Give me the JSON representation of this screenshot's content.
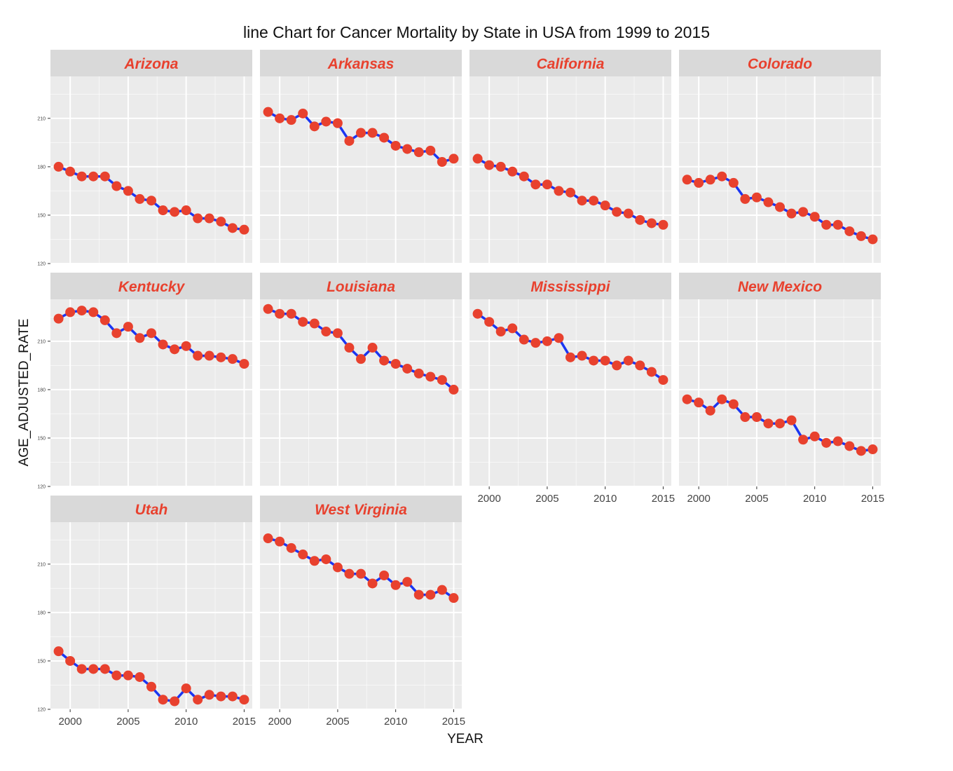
{
  "chart_data": {
    "type": "line",
    "title": "line Chart for Cancer Mortality by State in USA from 1999 to 2015",
    "xlabel": "YEAR",
    "ylabel": "AGE_ADJUSTED_RATE",
    "xlim": [
      1998.3,
      2015.7
    ],
    "ylim": [
      120,
      236
    ],
    "x_ticks": [
      2000,
      2005,
      2010,
      2015
    ],
    "y_ticks": [
      120,
      150,
      180,
      210
    ],
    "grid": true,
    "legend": "none",
    "facets": "wrap-4-columns",
    "colors": {
      "panel_bg": "#ebebeb",
      "strip_bg": "#d9d9d9",
      "grid": "#ffffff",
      "line": "#1a35f2",
      "point": "#e8412e",
      "strip_text": "#e8412e"
    },
    "x": [
      1999,
      2000,
      2001,
      2002,
      2003,
      2004,
      2005,
      2006,
      2007,
      2008,
      2009,
      2010,
      2011,
      2012,
      2013,
      2014,
      2015
    ],
    "series": [
      {
        "name": "Arizona",
        "values": [
          180,
          177,
          174,
          174,
          174,
          168,
          165,
          160,
          159,
          153,
          152,
          153,
          148,
          148,
          146,
          142,
          141
        ]
      },
      {
        "name": "Arkansas",
        "values": [
          214,
          210,
          209,
          213,
          205,
          208,
          207,
          196,
          201,
          201,
          198,
          193,
          191,
          189,
          190,
          183,
          185
        ]
      },
      {
        "name": "California",
        "values": [
          185,
          181,
          180,
          177,
          174,
          169,
          169,
          165,
          164,
          159,
          159,
          156,
          152,
          151,
          147,
          145,
          144
        ]
      },
      {
        "name": "Colorado",
        "values": [
          172,
          170,
          172,
          174,
          170,
          160,
          161,
          158,
          155,
          151,
          152,
          149,
          144,
          144,
          140,
          137,
          135
        ]
      },
      {
        "name": "Kentucky",
        "values": [
          224,
          228,
          229,
          228,
          223,
          215,
          219,
          212,
          215,
          208,
          205,
          207,
          201,
          201,
          200,
          199,
          196
        ]
      },
      {
        "name": "Louisiana",
        "values": [
          230,
          227,
          227,
          222,
          221,
          216,
          215,
          206,
          199,
          206,
          198,
          196,
          193,
          190,
          188,
          186,
          180
        ]
      },
      {
        "name": "Mississippi",
        "values": [
          227,
          222,
          216,
          218,
          211,
          209,
          210,
          212,
          200,
          201,
          198,
          198,
          195,
          198,
          195,
          191,
          186
        ]
      },
      {
        "name": "New Mexico",
        "values": [
          174,
          172,
          167,
          174,
          171,
          163,
          163,
          159,
          159,
          161,
          149,
          151,
          147,
          148,
          145,
          142,
          143
        ]
      },
      {
        "name": "Utah",
        "values": [
          156,
          150,
          145,
          145,
          145,
          141,
          141,
          140,
          134,
          126,
          125,
          133,
          126,
          129,
          128,
          128,
          126
        ]
      },
      {
        "name": "West Virginia",
        "values": [
          226,
          224,
          220,
          216,
          212,
          213,
          208,
          204,
          204,
          198,
          203,
          197,
          199,
          191,
          191,
          194,
          189
        ]
      }
    ]
  }
}
